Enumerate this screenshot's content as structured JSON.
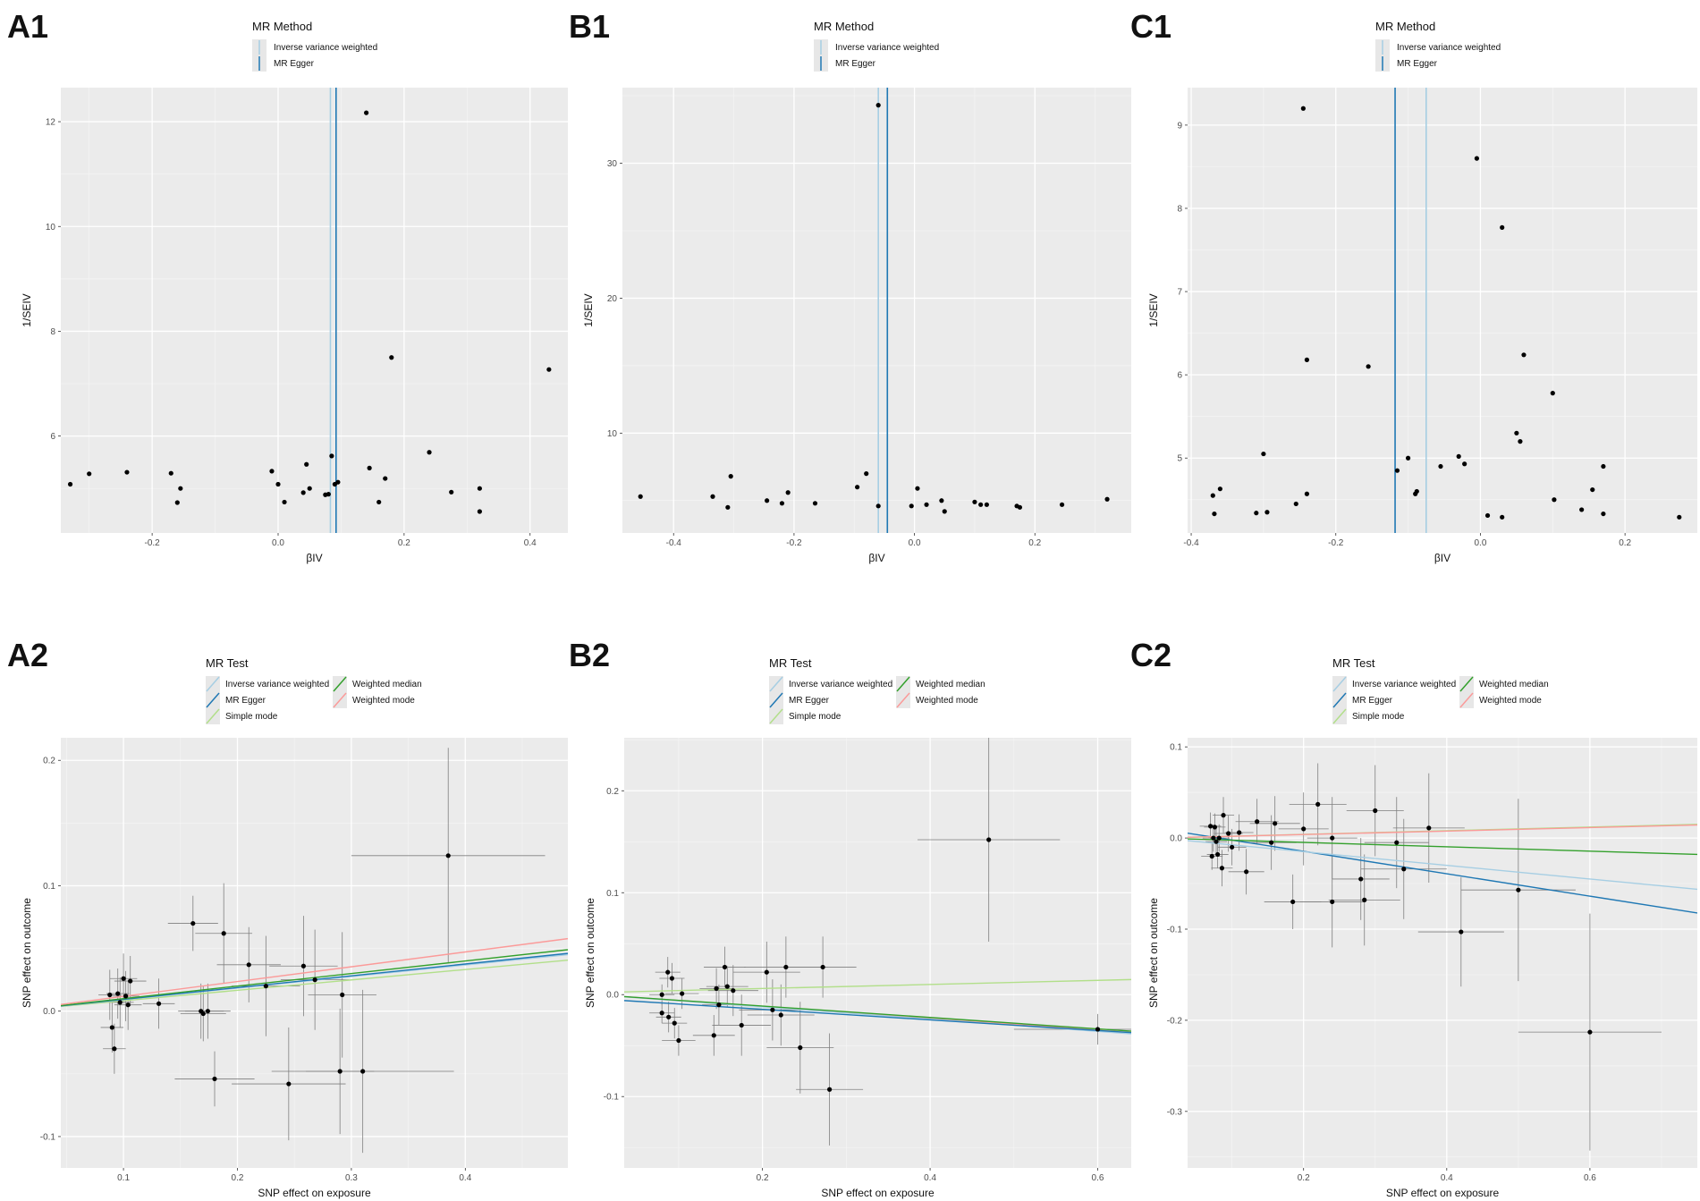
{
  "colors": {
    "panel_bg": "#ebebeb",
    "grid_major": "#ffffff",
    "grid_minor": "#f5f5f5",
    "ivw": "#a6cee3",
    "egger": "#1f78b4",
    "wmedian": "#33a02c",
    "wmode": "#fb9a99",
    "smode": "#b2df8a",
    "point": "#000000",
    "errorbar": "#7f7f7f"
  },
  "chart_data": [
    {
      "id": "A1",
      "panel_label": "A1",
      "type": "scatter",
      "kind": "funnel",
      "legend_title": "MR Method",
      "legend_items": [
        {
          "key": "ivw",
          "label": "Inverse variance weighted"
        },
        {
          "key": "egger",
          "label": "MR Egger"
        }
      ],
      "xlabel": "βIV",
      "ylabel": "1/SEIV",
      "xlim": [
        -0.345,
        0.46
      ],
      "ylim": [
        4.15,
        12.65
      ],
      "xticks": [
        -0.2,
        0.0,
        0.2,
        0.4
      ],
      "xtick_labels": [
        "-0.2",
        "0.0",
        "0.2",
        "0.4"
      ],
      "yticks": [
        6,
        8,
        10,
        12
      ],
      "ytick_labels": [
        "6",
        "8",
        "10",
        "12"
      ],
      "vlines": [
        {
          "key": "ivw",
          "x": 0.083
        },
        {
          "key": "egger",
          "x": 0.092
        }
      ],
      "points": [
        [
          -0.33,
          5.08
        ],
        [
          -0.3,
          5.28
        ],
        [
          -0.24,
          5.31
        ],
        [
          -0.17,
          5.29
        ],
        [
          -0.16,
          4.73
        ],
        [
          -0.155,
          5.0
        ],
        [
          -0.01,
          5.33
        ],
        [
          0.0,
          5.08
        ],
        [
          0.01,
          4.74
        ],
        [
          0.04,
          4.92
        ],
        [
          0.045,
          5.46
        ],
        [
          0.05,
          5.0
        ],
        [
          0.075,
          4.88
        ],
        [
          0.08,
          4.89
        ],
        [
          0.085,
          5.62
        ],
        [
          0.09,
          5.08
        ],
        [
          0.095,
          5.12
        ],
        [
          0.14,
          12.17
        ],
        [
          0.145,
          5.39
        ],
        [
          0.16,
          4.74
        ],
        [
          0.17,
          5.19
        ],
        [
          0.18,
          7.5
        ],
        [
          0.24,
          5.69
        ],
        [
          0.275,
          4.93
        ],
        [
          0.32,
          5.0
        ],
        [
          0.32,
          4.56
        ],
        [
          0.43,
          7.27
        ]
      ]
    },
    {
      "id": "B1",
      "panel_label": "B1",
      "type": "scatter",
      "kind": "funnel",
      "legend_title": "MR Method",
      "legend_items": [
        {
          "key": "ivw",
          "label": "Inverse variance weighted"
        },
        {
          "key": "egger",
          "label": "MR Egger"
        }
      ],
      "xlabel": "βIV",
      "ylabel": "1/SEIV",
      "xlim": [
        -0.485,
        0.36
      ],
      "ylim": [
        2.6,
        35.6
      ],
      "xticks": [
        -0.4,
        -0.2,
        0.0,
        0.2
      ],
      "xtick_labels": [
        "-0.4",
        "-0.2",
        "0.0",
        "0.2"
      ],
      "yticks": [
        10,
        20,
        30
      ],
      "ytick_labels": [
        "10",
        "20",
        "30"
      ],
      "vlines": [
        {
          "key": "ivw",
          "x": -0.06
        },
        {
          "key": "egger",
          "x": -0.045
        }
      ],
      "points": [
        [
          -0.455,
          5.3
        ],
        [
          -0.335,
          5.3
        ],
        [
          -0.31,
          4.5
        ],
        [
          -0.305,
          6.8
        ],
        [
          -0.245,
          5.0
        ],
        [
          -0.22,
          4.8
        ],
        [
          -0.21,
          5.6
        ],
        [
          -0.165,
          4.8
        ],
        [
          -0.095,
          6.0
        ],
        [
          -0.08,
          7.0
        ],
        [
          -0.06,
          34.3
        ],
        [
          -0.06,
          4.6
        ],
        [
          -0.005,
          4.6
        ],
        [
          0.005,
          5.9
        ],
        [
          0.02,
          4.7
        ],
        [
          0.045,
          5.0
        ],
        [
          0.05,
          4.2
        ],
        [
          0.1,
          4.9
        ],
        [
          0.11,
          4.7
        ],
        [
          0.12,
          4.7
        ],
        [
          0.17,
          4.6
        ],
        [
          0.175,
          4.5
        ],
        [
          0.245,
          4.7
        ],
        [
          0.32,
          5.1
        ]
      ]
    },
    {
      "id": "C1",
      "panel_label": "C1",
      "type": "scatter",
      "kind": "funnel",
      "legend_title": "MR Method",
      "legend_items": [
        {
          "key": "ivw",
          "label": "Inverse variance weighted"
        },
        {
          "key": "egger",
          "label": "MR Egger"
        }
      ],
      "xlabel": "βIV",
      "ylabel": "1/SEIV",
      "xlim": [
        -0.405,
        0.3
      ],
      "ylim": [
        4.1,
        9.45
      ],
      "xticks": [
        -0.4,
        -0.2,
        0.0,
        0.2
      ],
      "xtick_labels": [
        "-0.4",
        "-0.2",
        "0.0",
        "0.2"
      ],
      "yticks": [
        5,
        6,
        7,
        8,
        9
      ],
      "ytick_labels": [
        "5",
        "6",
        "7",
        "8",
        "9"
      ],
      "vlines": [
        {
          "key": "ivw",
          "x": -0.075
        },
        {
          "key": "egger",
          "x": -0.118
        }
      ],
      "points": [
        [
          -0.37,
          4.55
        ],
        [
          -0.368,
          4.33
        ],
        [
          -0.36,
          4.63
        ],
        [
          -0.31,
          4.34
        ],
        [
          -0.3,
          5.05
        ],
        [
          -0.295,
          4.35
        ],
        [
          -0.255,
          4.45
        ],
        [
          -0.245,
          9.2
        ],
        [
          -0.24,
          6.18
        ],
        [
          -0.24,
          4.57
        ],
        [
          -0.155,
          6.1
        ],
        [
          -0.115,
          4.85
        ],
        [
          -0.1,
          5.0
        ],
        [
          -0.09,
          4.57
        ],
        [
          -0.088,
          4.6
        ],
        [
          -0.055,
          4.9
        ],
        [
          -0.03,
          5.02
        ],
        [
          -0.022,
          4.93
        ],
        [
          -0.005,
          8.6
        ],
        [
          0.01,
          4.31
        ],
        [
          0.03,
          7.77
        ],
        [
          0.03,
          4.29
        ],
        [
          0.05,
          5.3
        ],
        [
          0.055,
          5.2
        ],
        [
          0.06,
          6.24
        ],
        [
          0.1,
          5.78
        ],
        [
          0.102,
          4.5
        ],
        [
          0.14,
          4.38
        ],
        [
          0.155,
          4.62
        ],
        [
          0.17,
          4.9
        ],
        [
          0.17,
          4.33
        ],
        [
          0.275,
          4.29
        ]
      ]
    },
    {
      "id": "A2",
      "panel_label": "A2",
      "type": "scatter",
      "kind": "mr_scatter",
      "legend_title": "MR Test",
      "legend_items": [
        {
          "key": "ivw",
          "label": "Inverse variance weighted"
        },
        {
          "key": "wmedian",
          "label": "Weighted median"
        },
        {
          "key": "egger",
          "label": "MR Egger"
        },
        {
          "key": "wmode",
          "label": "Weighted mode"
        },
        {
          "key": "smode",
          "label": "Simple mode"
        }
      ],
      "xlabel": "SNP effect on exposure",
      "ylabel": "SNP effect on outcome",
      "xlim": [
        0.045,
        0.49
      ],
      "ylim": [
        -0.125,
        0.218
      ],
      "xticks": [
        0.1,
        0.2,
        0.3,
        0.4
      ],
      "xtick_labels": [
        "0.1",
        "0.2",
        "0.3",
        "0.4"
      ],
      "yticks": [
        -0.1,
        0.0,
        0.1,
        0.2
      ],
      "ytick_labels": [
        "-0.1",
        "0.0",
        "0.1",
        "0.2"
      ],
      "lines": [
        {
          "key": "smode",
          "slope": 0.083,
          "intercept": 0.0
        },
        {
          "key": "ivw",
          "slope": 0.092,
          "intercept": 0.0
        },
        {
          "key": "egger",
          "slope": 0.094,
          "intercept": 0.0
        },
        {
          "key": "wmedian",
          "slope": 0.1,
          "intercept": 0.0
        },
        {
          "key": "wmode",
          "slope": 0.118,
          "intercept": 0.0
        }
      ],
      "points": [
        [
          0.088,
          0.013,
          0.01,
          0.02
        ],
        [
          0.09,
          -0.013,
          0.01,
          0.02
        ],
        [
          0.092,
          -0.03,
          0.01,
          0.02
        ],
        [
          0.095,
          0.014,
          0.01,
          0.02
        ],
        [
          0.097,
          0.007,
          0.012,
          0.02
        ],
        [
          0.1,
          0.026,
          0.012,
          0.02
        ],
        [
          0.102,
          0.012,
          0.012,
          0.02
        ],
        [
          0.104,
          0.005,
          0.012,
          0.02
        ],
        [
          0.106,
          0.024,
          0.014,
          0.02
        ],
        [
          0.131,
          0.006,
          0.014,
          0.02
        ],
        [
          0.161,
          0.07,
          0.022,
          0.022
        ],
        [
          0.168,
          0.0,
          0.02,
          0.022
        ],
        [
          0.17,
          -0.002,
          0.02,
          0.022
        ],
        [
          0.174,
          0.0,
          0.02,
          0.022
        ],
        [
          0.18,
          -0.054,
          0.035,
          0.022
        ],
        [
          0.188,
          0.062,
          0.025,
          0.04
        ],
        [
          0.21,
          0.037,
          0.028,
          0.03
        ],
        [
          0.225,
          0.02,
          0.03,
          0.04
        ],
        [
          0.245,
          -0.058,
          0.05,
          0.045
        ],
        [
          0.258,
          0.036,
          0.03,
          0.04
        ],
        [
          0.268,
          0.025,
          0.03,
          0.04
        ],
        [
          0.29,
          -0.048,
          0.03,
          0.05
        ],
        [
          0.292,
          0.013,
          0.03,
          0.05
        ],
        [
          0.31,
          -0.048,
          0.08,
          0.065
        ],
        [
          0.385,
          0.124,
          0.085,
          0.086
        ]
      ]
    },
    {
      "id": "B2",
      "panel_label": "B2",
      "type": "scatter",
      "kind": "mr_scatter",
      "legend_title": "MR Test",
      "legend_items": [
        {
          "key": "ivw",
          "label": "Inverse variance weighted"
        },
        {
          "key": "wmedian",
          "label": "Weighted median"
        },
        {
          "key": "egger",
          "label": "MR Egger"
        },
        {
          "key": "wmode",
          "label": "Weighted mode"
        },
        {
          "key": "smode",
          "label": "Simple mode"
        }
      ],
      "xlabel": "SNP effect on exposure",
      "ylabel": "SNP effect on outcome",
      "xlim": [
        0.035,
        0.64
      ],
      "ylim": [
        -0.17,
        0.252
      ],
      "xticks": [
        0.2,
        0.4,
        0.6
      ],
      "xtick_labels": [
        "0.2",
        "0.4",
        "0.6"
      ],
      "yticks": [
        -0.1,
        0.0,
        0.1,
        0.2
      ],
      "ytick_labels": [
        "-0.1",
        "0.0",
        "0.1",
        "0.2"
      ],
      "lines": [
        {
          "key": "wmode",
          "slope": -0.058,
          "intercept": 0.0
        },
        {
          "key": "ivw",
          "slope": -0.06,
          "intercept": 0.0
        },
        {
          "key": "wmedian",
          "slope": -0.056,
          "intercept": 0.0
        },
        {
          "key": "egger",
          "slope": -0.052,
          "intercept": -0.004
        },
        {
          "key": "smode",
          "slope": 0.02,
          "intercept": 0.002
        }
      ],
      "points": [
        [
          0.08,
          0.0,
          0.015,
          0.01
        ],
        [
          0.08,
          -0.018,
          0.015,
          0.01
        ],
        [
          0.087,
          0.022,
          0.015,
          0.015
        ],
        [
          0.088,
          -0.022,
          0.015,
          0.015
        ],
        [
          0.092,
          0.016,
          0.015,
          0.015
        ],
        [
          0.095,
          -0.028,
          0.015,
          0.015
        ],
        [
          0.1,
          -0.045,
          0.02,
          0.015
        ],
        [
          0.104,
          0.001,
          0.02,
          0.015
        ],
        [
          0.142,
          -0.04,
          0.025,
          0.02
        ],
        [
          0.145,
          0.006,
          0.02,
          0.02
        ],
        [
          0.148,
          -0.01,
          0.02,
          0.02
        ],
        [
          0.155,
          0.027,
          0.025,
          0.02
        ],
        [
          0.158,
          0.008,
          0.025,
          0.02
        ],
        [
          0.165,
          0.004,
          0.03,
          0.025
        ],
        [
          0.175,
          -0.03,
          0.035,
          0.03
        ],
        [
          0.205,
          0.022,
          0.04,
          0.03
        ],
        [
          0.212,
          -0.015,
          0.04,
          0.03
        ],
        [
          0.222,
          -0.02,
          0.04,
          0.03
        ],
        [
          0.228,
          0.027,
          0.05,
          0.03
        ],
        [
          0.245,
          -0.052,
          0.04,
          0.045
        ],
        [
          0.272,
          0.027,
          0.04,
          0.03
        ],
        [
          0.28,
          -0.093,
          0.04,
          0.055
        ],
        [
          0.47,
          0.152,
          0.085,
          0.1
        ],
        [
          0.6,
          -0.034,
          0.1,
          0.015
        ]
      ]
    },
    {
      "id": "C2",
      "panel_label": "C2",
      "type": "scatter",
      "kind": "mr_scatter",
      "legend_title": "MR Test",
      "legend_items": [
        {
          "key": "ivw",
          "label": "Inverse variance weighted"
        },
        {
          "key": "wmedian",
          "label": "Weighted median"
        },
        {
          "key": "egger",
          "label": "MR Egger"
        },
        {
          "key": "wmode",
          "label": "Weighted mode"
        },
        {
          "key": "smode",
          "label": "Simple mode"
        }
      ],
      "xlabel": "SNP effect on exposure",
      "ylabel": "SNP effect on outcome",
      "xlim": [
        0.038,
        0.75
      ],
      "ylim": [
        -0.362,
        0.11
      ],
      "xticks": [
        0.2,
        0.4,
        0.6
      ],
      "xtick_labels": [
        "0.2",
        "0.4",
        "0.6"
      ],
      "yticks": [
        -0.3,
        -0.2,
        -0.1,
        0.0,
        0.1
      ],
      "ytick_labels": [
        "-0.3",
        "-0.2",
        "-0.1",
        "0.0",
        "0.1"
      ],
      "lines": [
        {
          "key": "egger",
          "slope": -0.123,
          "intercept": 0.01
        },
        {
          "key": "ivw",
          "slope": -0.075,
          "intercept": 0.0
        },
        {
          "key": "wmedian",
          "slope": -0.024,
          "intercept": 0.0
        },
        {
          "key": "smode",
          "slope": 0.02,
          "intercept": 0.0
        },
        {
          "key": "wmode",
          "slope": 0.019,
          "intercept": 0.0
        }
      ],
      "points": [
        [
          0.07,
          0.013,
          0.015,
          0.015
        ],
        [
          0.072,
          -0.02,
          0.015,
          0.015
        ],
        [
          0.074,
          0.0,
          0.015,
          0.015
        ],
        [
          0.076,
          0.012,
          0.015,
          0.015
        ],
        [
          0.078,
          -0.004,
          0.015,
          0.015
        ],
        [
          0.08,
          -0.018,
          0.015,
          0.015
        ],
        [
          0.082,
          0.0,
          0.015,
          0.015
        ],
        [
          0.086,
          -0.033,
          0.015,
          0.02
        ],
        [
          0.088,
          0.025,
          0.015,
          0.02
        ],
        [
          0.095,
          0.005,
          0.02,
          0.02
        ],
        [
          0.1,
          -0.01,
          0.02,
          0.02
        ],
        [
          0.11,
          0.006,
          0.02,
          0.02
        ],
        [
          0.12,
          -0.037,
          0.025,
          0.025
        ],
        [
          0.135,
          0.018,
          0.03,
          0.025
        ],
        [
          0.155,
          -0.005,
          0.035,
          0.03
        ],
        [
          0.16,
          0.016,
          0.035,
          0.03
        ],
        [
          0.185,
          -0.07,
          0.04,
          0.03
        ],
        [
          0.2,
          0.01,
          0.035,
          0.04
        ],
        [
          0.22,
          0.037,
          0.04,
          0.045
        ],
        [
          0.24,
          0.0,
          0.035,
          0.045
        ],
        [
          0.24,
          -0.07,
          0.045,
          0.05
        ],
        [
          0.28,
          -0.045,
          0.04,
          0.045
        ],
        [
          0.285,
          -0.068,
          0.05,
          0.05
        ],
        [
          0.3,
          0.03,
          0.04,
          0.05
        ],
        [
          0.33,
          -0.005,
          0.045,
          0.05
        ],
        [
          0.34,
          -0.034,
          0.06,
          0.055
        ],
        [
          0.375,
          0.011,
          0.05,
          0.06
        ],
        [
          0.42,
          -0.103,
          0.06,
          0.06
        ],
        [
          0.5,
          -0.057,
          0.08,
          0.1
        ],
        [
          0.6,
          -0.213,
          0.1,
          0.13
        ]
      ]
    }
  ]
}
